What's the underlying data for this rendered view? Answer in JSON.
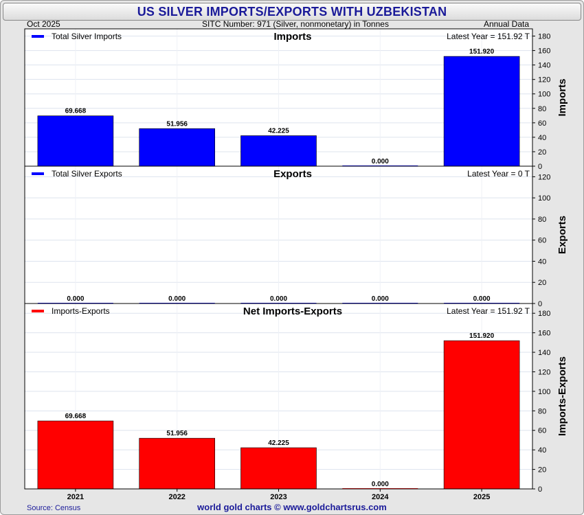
{
  "title": "US SILVER IMPORTS/EXPORTS WITH UZBEKISTAN",
  "header": {
    "date": "Oct  2025",
    "sitc": "SITC Number: 971 (Silver, nonmonetary) in Tonnes",
    "frequency": "Annual Data"
  },
  "footer": {
    "source": "Source: Census",
    "credit": "world gold charts © www.goldchartsrus.com"
  },
  "chart_data": [
    {
      "type": "bar",
      "title": "Imports",
      "legend": "Total Silver Imports",
      "latest": "Latest Year = 151.92 T",
      "ylabel": "Imports",
      "color": "#0000ff",
      "categories": [
        "2021",
        "2022",
        "2023",
        "2024",
        "2025"
      ],
      "values": [
        69.668,
        51.956,
        42.225,
        0.0,
        151.92
      ],
      "value_labels": [
        "69.668",
        "51.956",
        "42.225",
        "0.000",
        "151.920"
      ],
      "ylim": [
        0,
        190
      ],
      "yticks": [
        0,
        20,
        40,
        60,
        80,
        100,
        120,
        140,
        160,
        180
      ]
    },
    {
      "type": "bar",
      "title": "Exports",
      "legend": "Total Silver Exports",
      "latest": "Latest Year = 0 T",
      "ylabel": "Exports",
      "color": "#0000ff",
      "categories": [
        "2021",
        "2022",
        "2023",
        "2024",
        "2025"
      ],
      "values": [
        0,
        0,
        0,
        0,
        0
      ],
      "value_labels": [
        "0.000",
        "0.000",
        "0.000",
        "0.000",
        "0.000"
      ],
      "ylim": [
        0,
        130
      ],
      "yticks": [
        0,
        20,
        40,
        60,
        80,
        100,
        120
      ]
    },
    {
      "type": "bar",
      "title": "Net Imports-Exports",
      "legend": "Imports-Exports",
      "latest": "Latest Year = 151.92 T",
      "ylabel": "Imports-Exports",
      "color": "#ff0000",
      "categories": [
        "2021",
        "2022",
        "2023",
        "2024",
        "2025"
      ],
      "values": [
        69.668,
        51.956,
        42.225,
        0.0,
        151.92
      ],
      "value_labels": [
        "69.668",
        "51.956",
        "42.225",
        "0.000",
        "151.920"
      ],
      "ylim": [
        0,
        190
      ],
      "yticks": [
        0,
        20,
        40,
        60,
        80,
        100,
        120,
        140,
        160,
        180
      ]
    }
  ]
}
